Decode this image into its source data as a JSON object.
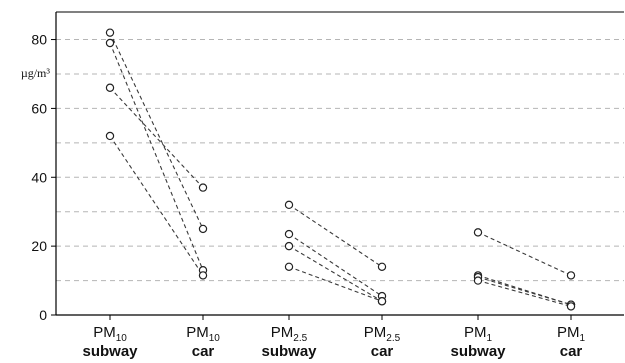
{
  "chart_data": {
    "type": "scatter",
    "title": "",
    "xlabel": "",
    "ylabel": "µg/m³",
    "ylim": [
      0,
      88
    ],
    "y_ticks": [
      0,
      20,
      40,
      60,
      80
    ],
    "grid": "dashed horizontal every 10",
    "categories": [
      {
        "main": "PM",
        "sub": "10",
        "line2": "subway"
      },
      {
        "main": "PM",
        "sub": "10",
        "line2": "car"
      },
      {
        "main": "PM",
        "sub": "2.5",
        "line2": "subway"
      },
      {
        "main": "PM",
        "sub": "2.5",
        "line2": "car"
      },
      {
        "main": "PM",
        "sub": "1",
        "line2": "subway"
      },
      {
        "main": "PM",
        "sub": "1",
        "line2": "car"
      }
    ],
    "pairs": [
      {
        "group": "PM10",
        "subway": 82,
        "car": 25
      },
      {
        "group": "PM10",
        "subway": 79,
        "car": 13
      },
      {
        "group": "PM10",
        "subway": 66,
        "car": 37
      },
      {
        "group": "PM10",
        "subway": 52,
        "car": 11.5
      },
      {
        "group": "PM2.5",
        "subway": 32,
        "car": 14
      },
      {
        "group": "PM2.5",
        "subway": 23.5,
        "car": 5.5
      },
      {
        "group": "PM2.5",
        "subway": 20,
        "car": 4
      },
      {
        "group": "PM2.5",
        "subway": 14,
        "car": 4
      },
      {
        "group": "PM1",
        "subway": 24,
        "car": 11.5
      },
      {
        "group": "PM1",
        "subway": 11.5,
        "car": 3
      },
      {
        "group": "PM1",
        "subway": 11,
        "car": 3
      },
      {
        "group": "PM1",
        "subway": 10,
        "car": 2.5
      }
    ],
    "colors": {
      "line": "#3a3a3a",
      "grid": "#b5b5b5",
      "axis": "#000000",
      "marker": "#222222"
    }
  }
}
